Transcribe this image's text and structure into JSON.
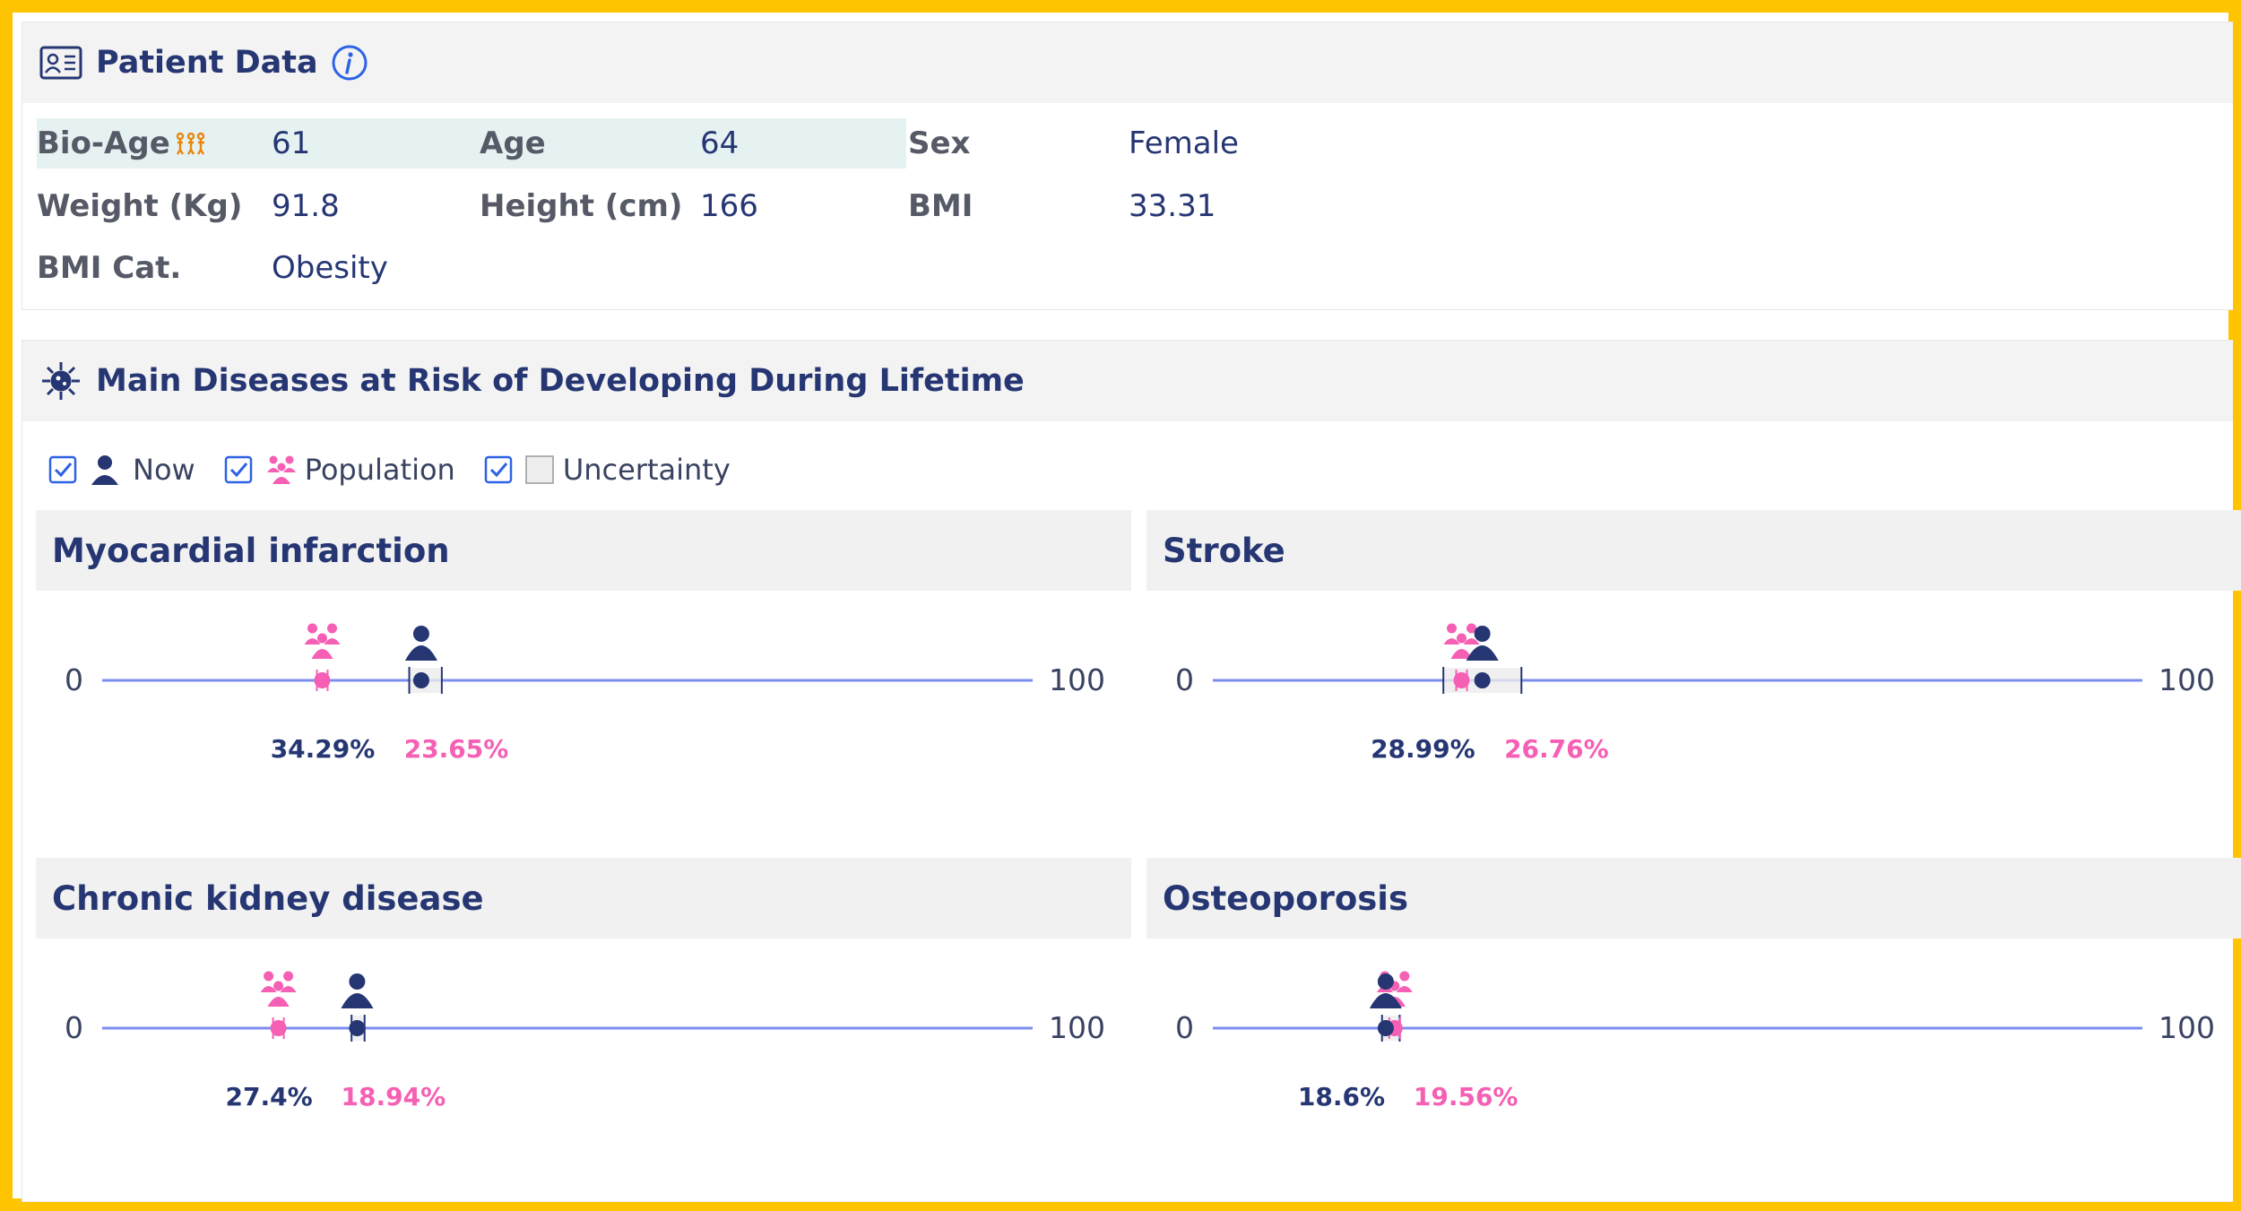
{
  "colors": {
    "accent": "#253673",
    "population": "#F55FB4",
    "axis": "#7C8DF0",
    "frame": "#FFC400"
  },
  "patient_data": {
    "title": "Patient Data",
    "title_icon": "id-card-icon",
    "info_icon": "info-icon",
    "fields": {
      "bio_age_label": "Bio-Age",
      "bio_age_value": "61",
      "bio_age_icon": "aging-icon",
      "age_label": "Age",
      "age_value": "64",
      "sex_label": "Sex",
      "sex_value": "Female",
      "weight_label": "Weight (Kg)",
      "weight_value": "91.8",
      "height_label": "Height (cm)",
      "height_value": "166",
      "bmi_label": "BMI",
      "bmi_value": "33.31",
      "bmi_cat_label": "BMI Cat.",
      "bmi_cat_value": "Obesity"
    }
  },
  "diseases": {
    "title": "Main Diseases at Risk of Developing During Lifetime",
    "title_icon": "virus-icon",
    "legend": {
      "now": "Now",
      "population": "Population",
      "uncertainty": "Uncertainty"
    },
    "axis_min": "0",
    "axis_max": "100",
    "panels": [
      {
        "name": "Myocardial infarction",
        "now": 34.29,
        "pop": 23.65,
        "unc": [
          33,
          36.5
        ],
        "now_label": "34.29%",
        "pop_label": "23.65%"
      },
      {
        "name": "Stroke",
        "now": 28.99,
        "pop": 26.76,
        "unc": [
          24.8,
          33.2
        ],
        "now_label": "28.99%",
        "pop_label": "26.76%"
      },
      {
        "name": "Chronic kidney disease",
        "now": 27.4,
        "pop": 18.94,
        "unc": [
          26.8,
          28.2
        ],
        "now_label": "27.4%",
        "pop_label": "18.94%"
      },
      {
        "name": "Osteoporosis",
        "now": 18.6,
        "pop": 19.56,
        "unc": [
          18.2,
          20.1
        ],
        "now_label": "18.6%",
        "pop_label": "19.56%"
      }
    ]
  }
}
